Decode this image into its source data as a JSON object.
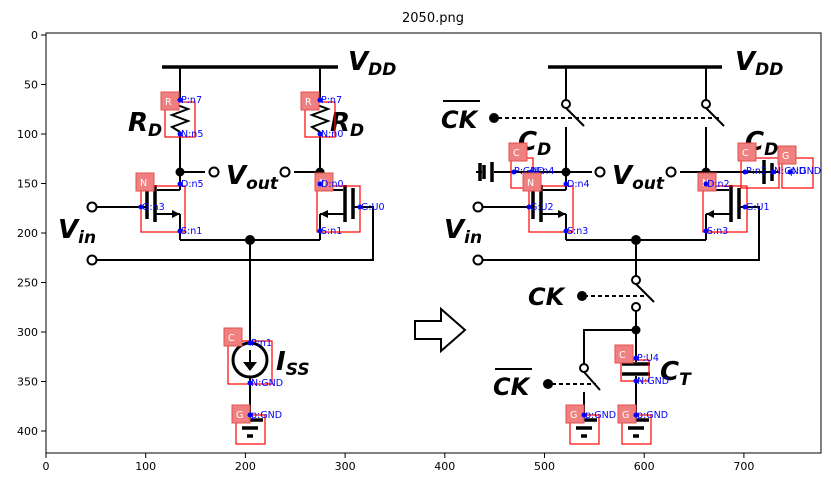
{
  "title": "2050.png",
  "axes": {
    "x_ticks": [
      "0",
      "100",
      "200",
      "300",
      "400",
      "500",
      "600",
      "700",
      "800"
    ],
    "y_ticks": [
      "0",
      "50",
      "100",
      "150",
      "200",
      "250",
      "300",
      "350",
      "400"
    ]
  },
  "left_circuit": {
    "vdd": "V",
    "vdd_sub": "DD",
    "rd_left": "R",
    "rd_left_sub": "D",
    "rd_right": "R",
    "rd_right_sub": "D",
    "vout": "V",
    "vout_sub": "out",
    "vin": "V",
    "vin_sub": "in",
    "iss": "I",
    "iss_sub": "SS"
  },
  "right_circuit": {
    "vdd": "V",
    "vdd_sub": "DD",
    "ck_bar_top": "CK",
    "cd_left": "C",
    "cd_left_sub": "D",
    "cd_right": "C",
    "cd_right_sub": "D",
    "vout": "V",
    "vout_sub": "out",
    "vin": "V",
    "vin_sub": "in",
    "ck": "CK",
    "ct": "C",
    "ct_sub": "T",
    "ck_bar_bottom": "CK"
  },
  "annotations": {
    "tags": {
      "r1": "R",
      "r2": "R",
      "n1": "N",
      "n2": "N",
      "c1": "C",
      "g1": "G",
      "c2": "C",
      "n3": "N",
      "n4": "N",
      "c3": "C",
      "g2": "G",
      "c4": "C",
      "g3": "G",
      "g4": "G"
    },
    "pins": {
      "r1_p": "P:n7",
      "r1_n": "N:n5",
      "r2_p": "P:n7",
      "r2_n": "N:n0",
      "n1_d": "D:n5",
      "n1_g": "G:n3",
      "n1_s": "S:n1",
      "n2_d": "D:n0",
      "n2_g": "G:U0",
      "n2_s": "S:n1",
      "c1_p": "P:n1",
      "c1_n": "N:GND",
      "g1_p": "p:GND",
      "c2_p": "P:GND",
      "c2_n": "N:n4",
      "n3_d": "D:n4",
      "n3_g": "G:U2",
      "n3_s": "S:n3",
      "n4_d": "D:n2",
      "n4_g": "G:U1",
      "n4_s": "S:n3",
      "c3_p": "P:n2",
      "c3_n": "N:GND",
      "g2_p": "p:GND",
      "c4_p": "P:U4",
      "c4_n": "N:GND",
      "g3_p": "p:GND",
      "g4_p": "p:GND"
    }
  }
}
